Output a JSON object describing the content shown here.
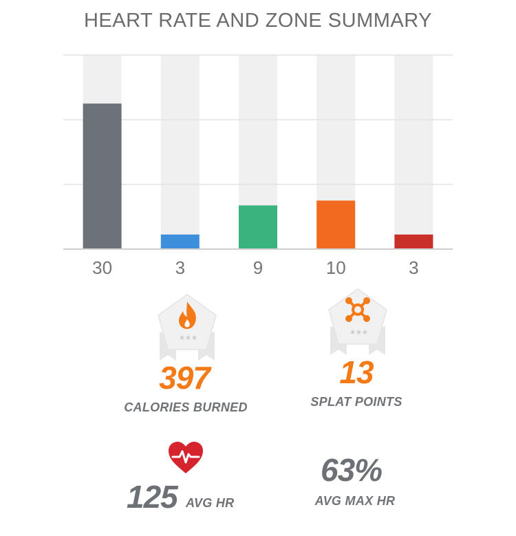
{
  "title": "HEART RATE AND ZONE SUMMARY",
  "chart_data": {
    "type": "bar",
    "title": "HEART RATE AND ZONE SUMMARY",
    "categories": [
      "30",
      "3",
      "9",
      "10",
      "3"
    ],
    "values": [
      30,
      3,
      9,
      10,
      3
    ],
    "colors": [
      "#6c7278",
      "#3d8fdc",
      "#3ab37f",
      "#f26a1f",
      "#c9302a"
    ],
    "ylim": [
      0,
      40
    ],
    "grid": true
  },
  "calories": {
    "value": "397",
    "label": "CALORIES BURNED",
    "icon": "flame-icon"
  },
  "splat": {
    "value": "13",
    "label": "SPLAT POINTS",
    "icon": "splat-icon"
  },
  "avg_hr": {
    "value": "125",
    "label": "AVG HR",
    "icon": "heart-rate-icon"
  },
  "avg_max_hr": {
    "value": "63%",
    "label": "AVG MAX HR"
  },
  "colors": {
    "accent": "#f47a17",
    "heart": "#d6242f",
    "gray_text": "#6d7075"
  }
}
